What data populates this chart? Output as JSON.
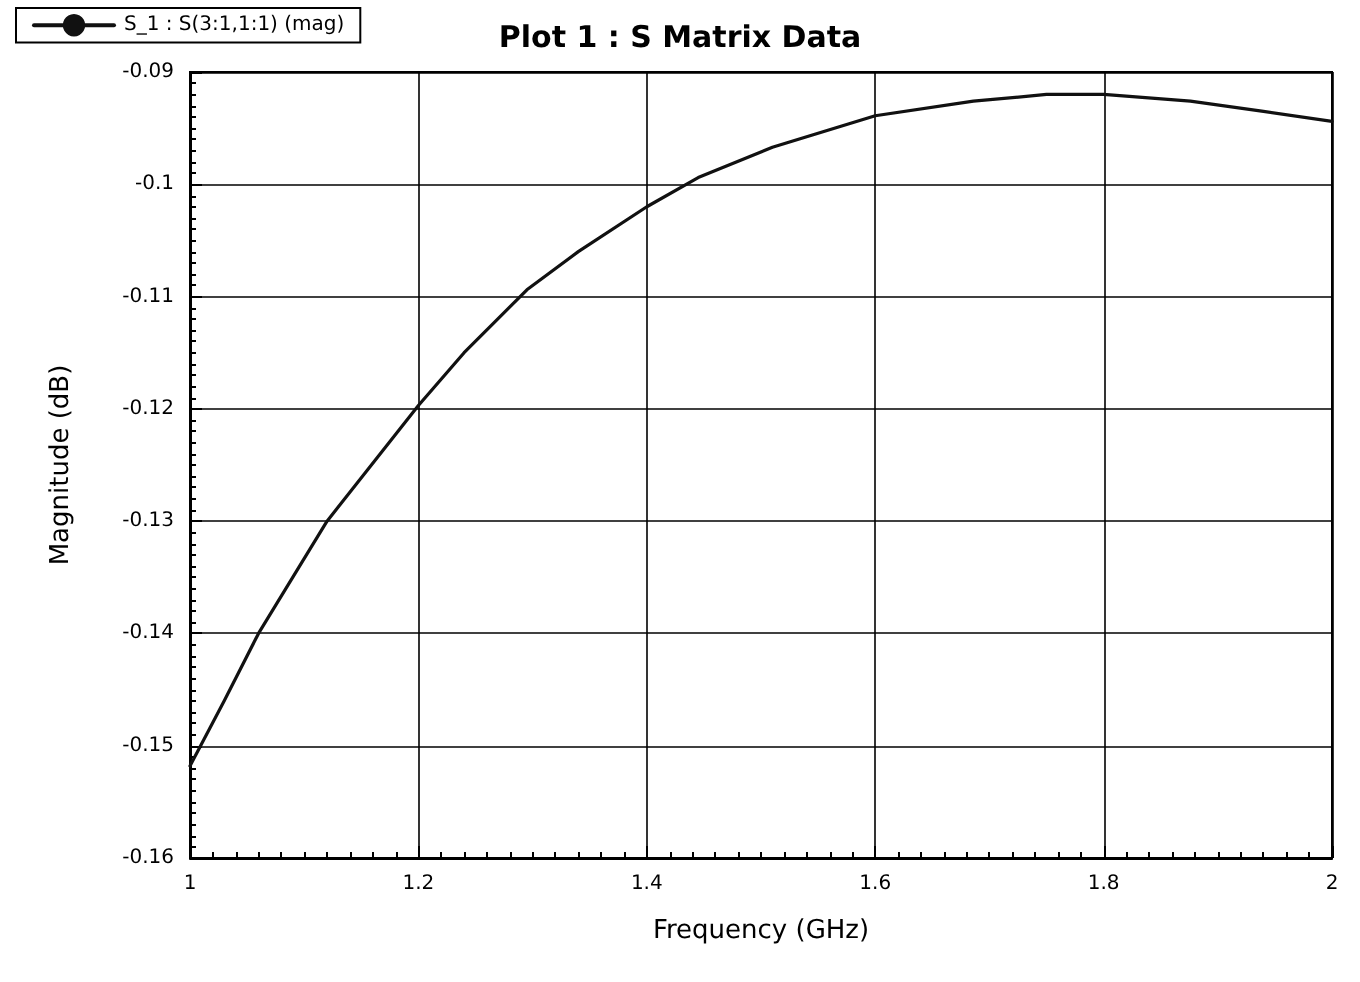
{
  "chart_data": {
    "type": "line",
    "title": "Plot 1 : S Matrix Data",
    "xlabel": "Frequency (GHz)",
    "ylabel": "Magnitude (dB)",
    "x": [
      1.0,
      1.03,
      1.06,
      1.12,
      1.2,
      1.24,
      1.295,
      1.34,
      1.4,
      1.445,
      1.51,
      1.6,
      1.686,
      1.75,
      1.8,
      1.876,
      1.94,
      2.0
    ],
    "series": [
      {
        "name": "S_1 : S(3:1,1:1) (mag)",
        "color": "#111111",
        "values": [
          -0.1518,
          -0.146,
          -0.14,
          -0.13,
          -0.1197,
          -0.115,
          -0.1094,
          -0.106,
          -0.102,
          -0.0994,
          -0.0967,
          -0.0939,
          -0.0926,
          -0.092,
          -0.092,
          -0.0926,
          -0.0935,
          -0.0944
        ]
      }
    ],
    "xlim": [
      1,
      2
    ],
    "xticks": [
      1,
      1.2,
      1.4,
      1.6,
      1.8,
      2
    ],
    "ylim": [
      -0.16,
      -0.09
    ],
    "yticks": [
      -0.16,
      -0.15,
      -0.14,
      -0.13,
      -0.12,
      -0.11,
      -0.1,
      -0.09
    ],
    "grid": true,
    "legend": "top left",
    "marker": "none",
    "line_style": "solid"
  }
}
